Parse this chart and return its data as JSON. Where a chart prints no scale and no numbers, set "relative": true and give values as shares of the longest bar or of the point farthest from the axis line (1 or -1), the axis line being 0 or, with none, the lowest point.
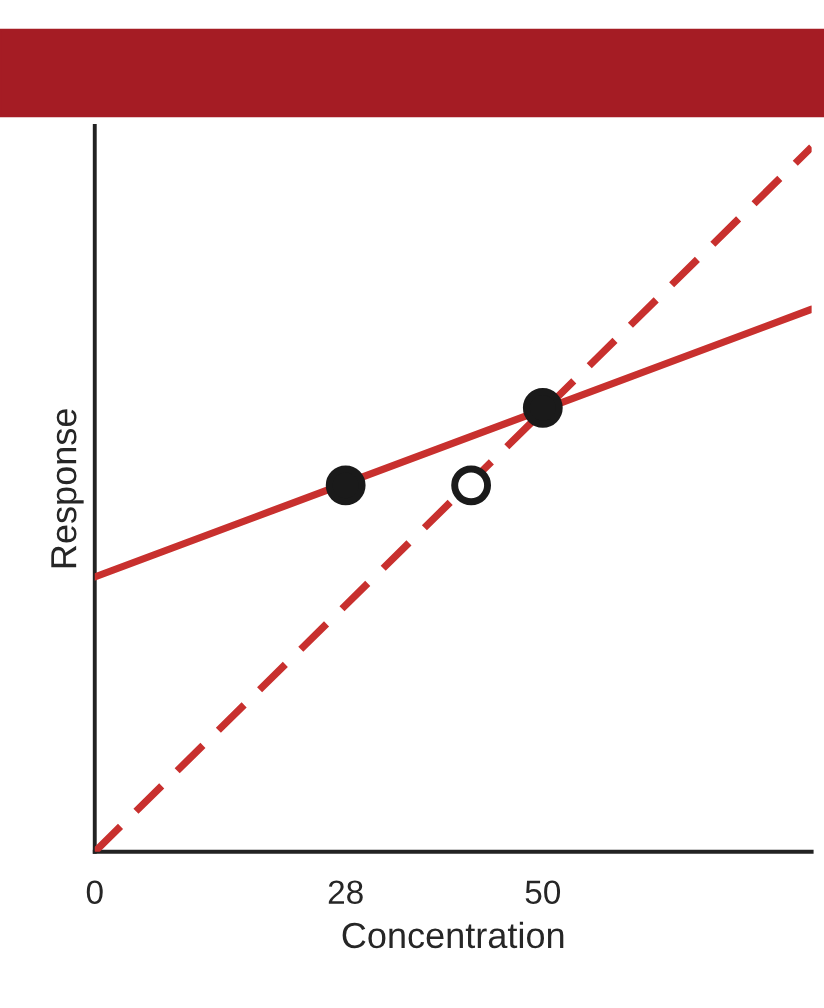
{
  "chart_data": {
    "type": "line",
    "xlabel": "Concentration",
    "ylabel": "Response",
    "relative": true,
    "xlim": [
      0,
      80
    ],
    "xticks": [
      0,
      28,
      50
    ],
    "tick_labels": "x",
    "grid": false,
    "legend": false,
    "series": [
      {
        "x": [
          0,
          80
        ],
        "values": [
          0.39,
          0.77
        ],
        "color": "#c8302e",
        "line_style": "solid",
        "marker": "none"
      },
      {
        "x": [
          0,
          80
        ],
        "values": [
          0,
          1
        ],
        "color": "#c8302e",
        "line_style": "dashed",
        "marker": "none"
      },
      {
        "type": "scatter",
        "x": [
          28,
          50
        ],
        "values": [
          0.52,
          0.63
        ],
        "color": "#1a1a1a",
        "marker": "circle"
      },
      {
        "type": "scatter",
        "x": [
          42
        ],
        "values": [
          0.52
        ],
        "color": "#ffffff",
        "marker": "circle"
      }
    ]
  }
}
